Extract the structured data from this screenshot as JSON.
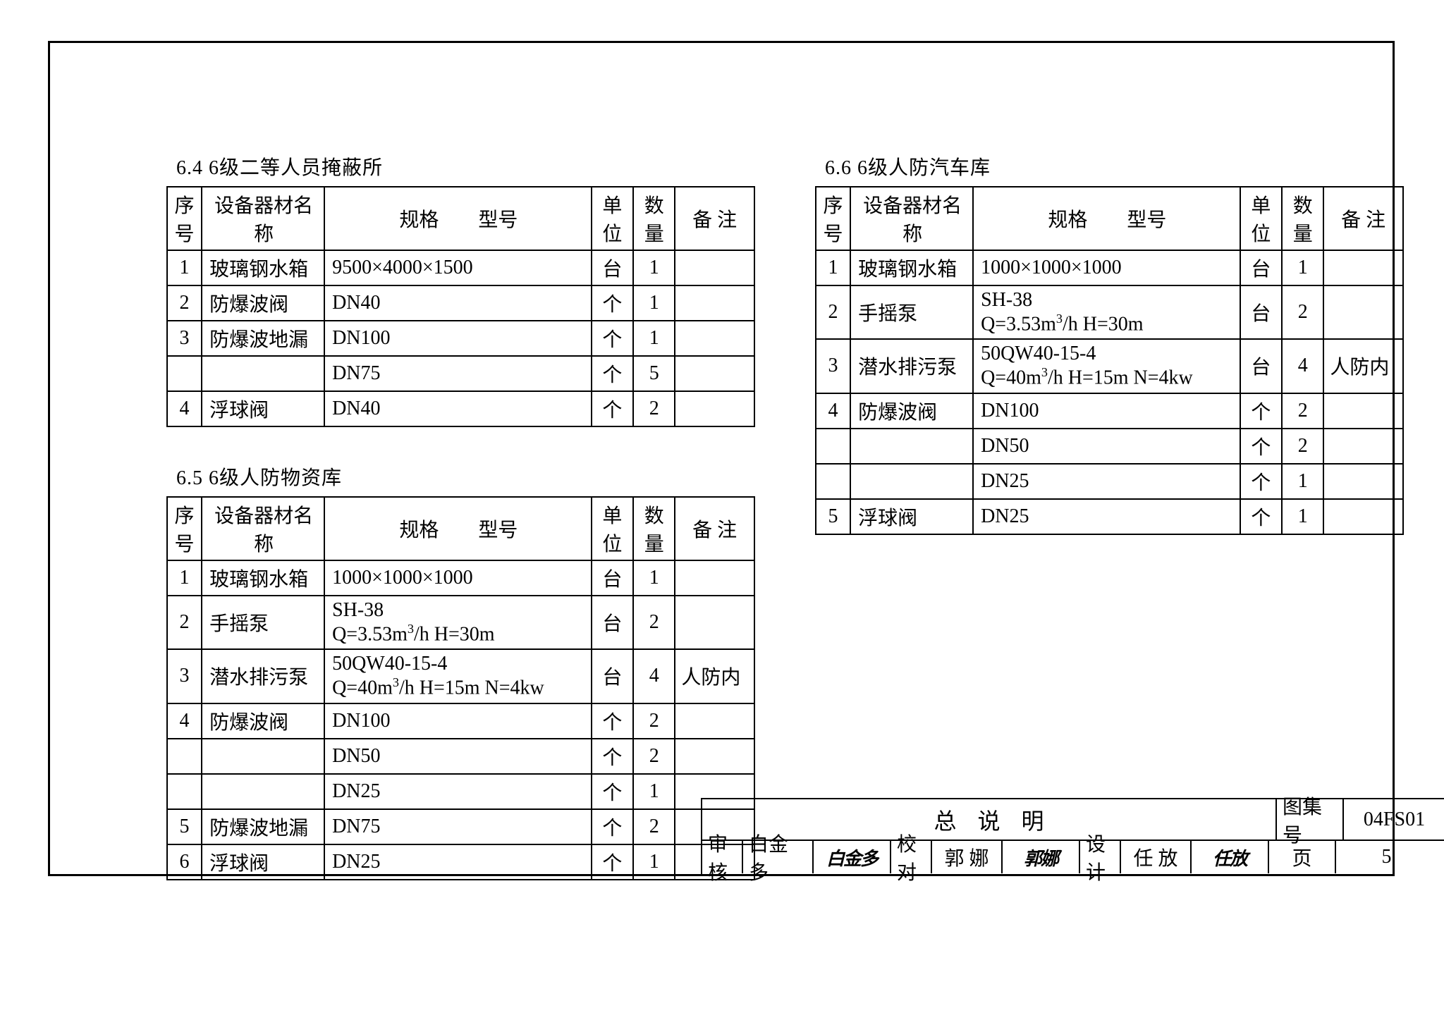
{
  "border_color": "#000000",
  "page_bg": "#ffffff",
  "headers": {
    "seq": "序号",
    "name": "设备器材名称",
    "spec": "规格　　型号",
    "unit": "单位",
    "qty": "数量",
    "note": "备 注"
  },
  "sections": {
    "s64": {
      "title": "6.4  6级二等人员掩蔽所",
      "rows": [
        {
          "seq": "1",
          "name": "玻璃钢水箱",
          "spec": "9500×4000×1500",
          "unit": "台",
          "qty": "1",
          "note": ""
        },
        {
          "seq": "2",
          "name": "防爆波阀",
          "spec": "DN40",
          "unit": "个",
          "qty": "1",
          "note": ""
        },
        {
          "seq": "3",
          "name": "防爆波地漏",
          "spec": "DN100",
          "unit": "个",
          "qty": "1",
          "note": ""
        },
        {
          "seq": "",
          "name": "",
          "spec": "DN75",
          "unit": "个",
          "qty": "5",
          "note": ""
        },
        {
          "seq": "4",
          "name": "浮球阀",
          "spec": "DN40",
          "unit": "个",
          "qty": "2",
          "note": ""
        }
      ]
    },
    "s65": {
      "title": "6.5  6级人防物资库",
      "rows": [
        {
          "seq": "1",
          "name": "玻璃钢水箱",
          "spec": "1000×1000×1000",
          "unit": "台",
          "qty": "1",
          "note": ""
        },
        {
          "seq": "2",
          "name": "手摇泵",
          "spec": "SH-38<br>Q=3.53m<sup>3</sup>/h  H=30m",
          "unit": "台",
          "qty": "2",
          "note": ""
        },
        {
          "seq": "3",
          "name": "潜水排污泵",
          "spec": "50QW40-15-4<br>Q=40m<sup>3</sup>/h  H=15m  N=4kw",
          "unit": "台",
          "qty": "4",
          "note": "人防内"
        },
        {
          "seq": "4",
          "name": "防爆波阀",
          "spec": "DN100",
          "unit": "个",
          "qty": "2",
          "note": ""
        },
        {
          "seq": "",
          "name": "",
          "spec": "DN50",
          "unit": "个",
          "qty": "2",
          "note": ""
        },
        {
          "seq": "",
          "name": "",
          "spec": "DN25",
          "unit": "个",
          "qty": "1",
          "note": ""
        },
        {
          "seq": "5",
          "name": "防爆波地漏",
          "spec": "DN75",
          "unit": "个",
          "qty": "2",
          "note": ""
        },
        {
          "seq": "6",
          "name": "浮球阀",
          "spec": "DN25",
          "unit": "个",
          "qty": "1",
          "note": ""
        }
      ]
    },
    "s66": {
      "title": "6.6  6级人防汽车库",
      "rows": [
        {
          "seq": "1",
          "name": "玻璃钢水箱",
          "spec": "1000×1000×1000",
          "unit": "台",
          "qty": "1",
          "note": ""
        },
        {
          "seq": "2",
          "name": "手摇泵",
          "spec": "SH-38<br>Q=3.53m<sup>3</sup>/h  H=30m",
          "unit": "台",
          "qty": "2",
          "note": ""
        },
        {
          "seq": "3",
          "name": "潜水排污泵",
          "spec": "50QW40-15-4<br>Q=40m<sup>3</sup>/h  H=15m  N=4kw",
          "unit": "台",
          "qty": "4",
          "note": "人防内"
        },
        {
          "seq": "4",
          "name": "防爆波阀",
          "spec": "DN100",
          "unit": "个",
          "qty": "2",
          "note": ""
        },
        {
          "seq": "",
          "name": "",
          "spec": "DN50",
          "unit": "个",
          "qty": "2",
          "note": ""
        },
        {
          "seq": "",
          "name": "",
          "spec": "DN25",
          "unit": "个",
          "qty": "1",
          "note": ""
        },
        {
          "seq": "5",
          "name": "浮球阀",
          "spec": "DN25",
          "unit": "个",
          "qty": "1",
          "note": ""
        }
      ]
    }
  },
  "titleblock": {
    "main_title": "总说明",
    "fig_label": "图集号",
    "fig_value": "04FS01",
    "review_label": "审核",
    "review_name": "白金多",
    "review_sig": "白金多",
    "check_label": "校对",
    "check_name": "郭 娜",
    "check_sig": "郭娜",
    "design_label": "设计",
    "design_name": "任 放",
    "design_sig": "任放",
    "page_label": "页",
    "page_value": "5"
  }
}
